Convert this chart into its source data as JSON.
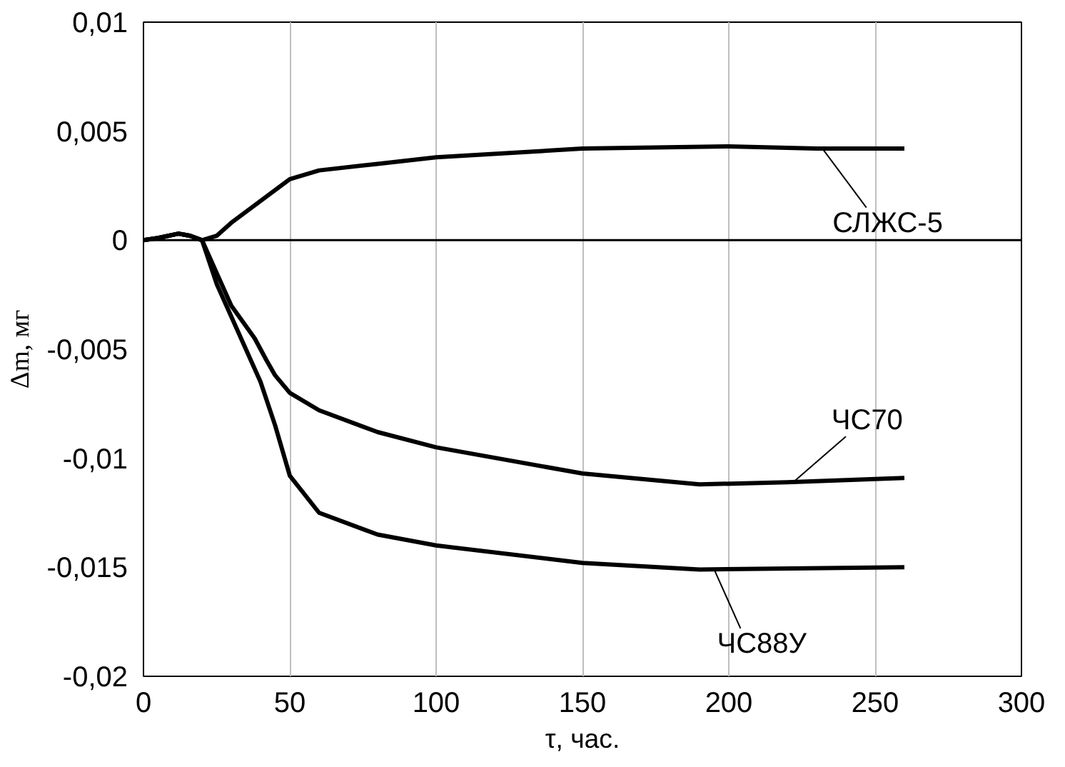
{
  "chart_data": {
    "type": "line",
    "xlabel": "τ, час.",
    "ylabel": "Δm, мг",
    "xlim": [
      0,
      300
    ],
    "xticks": [
      0,
      50,
      100,
      150,
      200,
      250,
      300
    ],
    "ylim": [
      -0.02,
      0.01
    ],
    "yticks": [
      {
        "value": -0.02,
        "label": "-0,02"
      },
      {
        "value": -0.015,
        "label": "-0,015"
      },
      {
        "value": -0.01,
        "label": "-0,01"
      },
      {
        "value": -0.005,
        "label": "-0,005"
      },
      {
        "value": 0,
        "label": "0"
      },
      {
        "value": 0.005,
        "label": "0,005"
      },
      {
        "value": 0.01,
        "label": "0,01"
      }
    ],
    "grid": "x",
    "marker": "none",
    "line_style": "solid",
    "ref_lines": [
      {
        "axis": "y",
        "value": 0,
        "color": "#000000"
      }
    ],
    "series": [
      {
        "color": "#000000",
        "x": [
          0,
          5,
          12,
          16,
          20,
          25,
          30,
          40,
          50,
          60,
          80,
          100,
          150,
          200,
          230,
          260
        ],
        "values": [
          0,
          0.0001,
          0.0003,
          0.0002,
          0,
          0.0002,
          0.0008,
          0.0018,
          0.0028,
          0.0032,
          0.0035,
          0.0038,
          0.0042,
          0.0043,
          0.0042,
          0.0042
        ]
      },
      {
        "color": "#000000",
        "x": [
          0,
          5,
          12,
          16,
          20,
          25,
          30,
          38,
          42,
          45,
          50,
          60,
          80,
          100,
          150,
          190,
          220,
          260
        ],
        "values": [
          0,
          0.0001,
          0.0003,
          0.0002,
          0,
          -0.0015,
          -0.003,
          -0.0045,
          -0.0055,
          -0.0062,
          -0.007,
          -0.0078,
          -0.0088,
          -0.0095,
          -0.0107,
          -0.0112,
          -0.0111,
          -0.0109
        ]
      },
      {
        "color": "#000000",
        "x": [
          0,
          5,
          12,
          16,
          20,
          25,
          30,
          40,
          45,
          50,
          60,
          80,
          100,
          150,
          190,
          260
        ],
        "values": [
          0,
          0.0001,
          0.0003,
          0.0002,
          0,
          -0.002,
          -0.0035,
          -0.0065,
          -0.0085,
          -0.0108,
          -0.0125,
          -0.0135,
          -0.014,
          -0.0148,
          -0.0151,
          -0.015
        ]
      }
    ],
    "annotations": [
      {
        "text": "СЛЖС-5",
        "x": 232,
        "y": 0.0042
      },
      {
        "text": "ЧС70",
        "x": 222,
        "y": -0.0111
      },
      {
        "text": "ЧС88У",
        "x": 195,
        "y": -0.0151
      }
    ]
  }
}
